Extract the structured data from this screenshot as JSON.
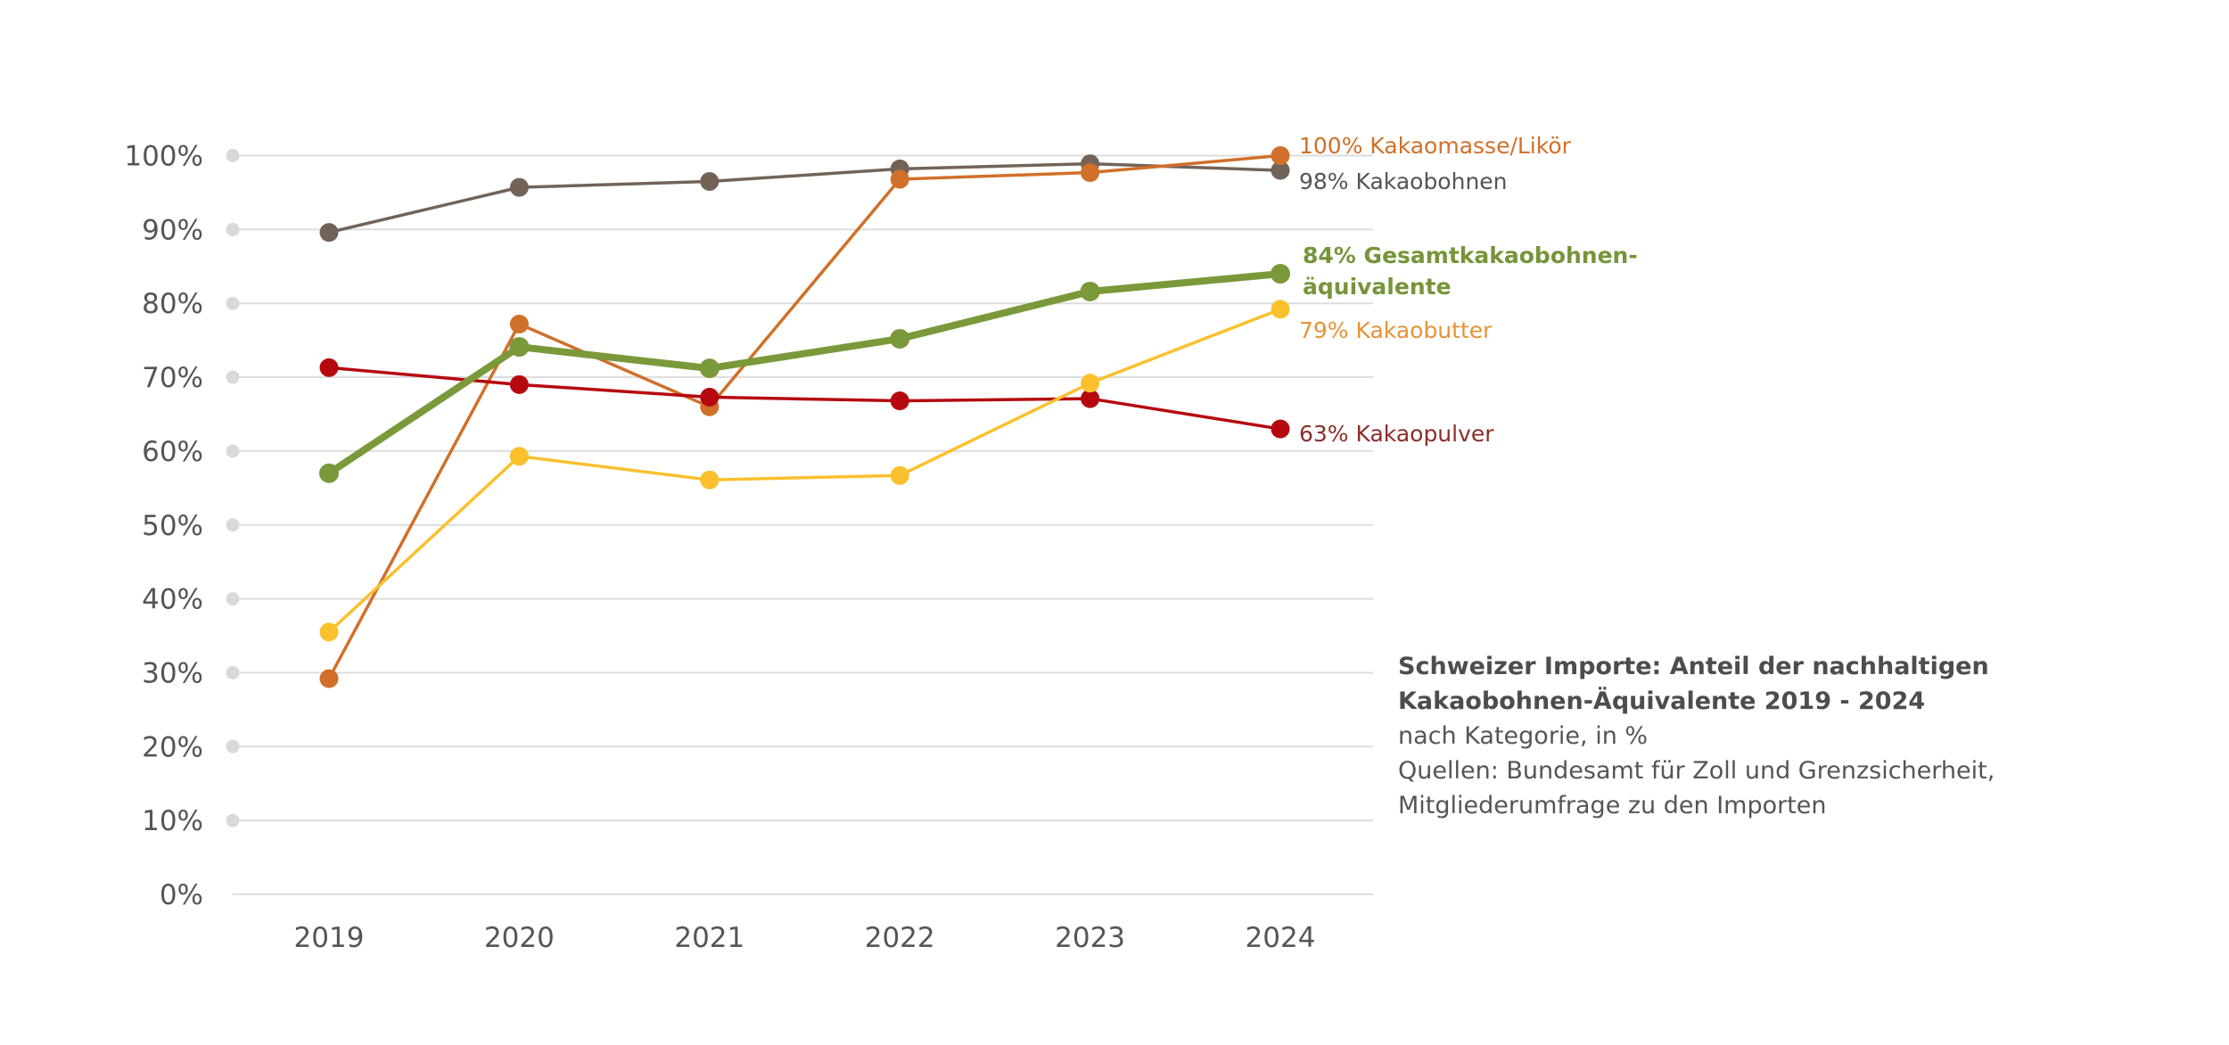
{
  "chart_data": {
    "type": "line",
    "title": "Schweizer Importe: Anteil der nachhaltigen Kakaobohnen-Äquivalente 2019 - 2024",
    "subtitle": "nach Kategorie, in %",
    "source": "Quellen: Bundesamt für Zoll und Grenzsicherheit, Mitgliederumfrage zu den Importen",
    "xlabel": "",
    "ylabel": "",
    "x": [
      "2019",
      "2020",
      "2021",
      "2022",
      "2023",
      "2024"
    ],
    "ylim": [
      0,
      100
    ],
    "yticks": [
      0,
      10,
      20,
      30,
      40,
      50,
      60,
      70,
      80,
      90,
      100
    ],
    "ytick_labels": [
      "0%",
      "10%",
      "20%",
      "30%",
      "40%",
      "50%",
      "60%",
      "70%",
      "80%",
      "90%",
      "100%"
    ],
    "grid": true,
    "legend": "end-of-line labels (right)",
    "series": [
      {
        "name": "Kakaobohnen",
        "end_label": "98% Kakaobohnen",
        "color": "#736357",
        "label_color": "#555555",
        "bold": false,
        "values": [
          89.6,
          95.7,
          96.5,
          98.2,
          98.9,
          98.0
        ]
      },
      {
        "name": "Kakaomasse/Likör",
        "end_label": "100% Kakaomasse/Likör",
        "color": "#d0702a",
        "label_color": "#d0702a",
        "bold": false,
        "values": [
          29.2,
          77.2,
          66.0,
          96.8,
          97.7,
          100.0
        ]
      },
      {
        "name": "Kakaopulver",
        "end_label": "63% Kakaopulver",
        "color": "#b5090f",
        "label_color": "#8a2e2a",
        "bold": false,
        "values": [
          71.3,
          69.0,
          67.3,
          66.8,
          67.1,
          63.0
        ]
      },
      {
        "name": "Kakaobutter",
        "end_label": "79% Kakaobutter",
        "color": "#fbc02d",
        "label_color": "#e69336",
        "bold": false,
        "values": [
          35.5,
          59.3,
          56.1,
          56.7,
          69.2,
          79.2
        ]
      },
      {
        "name": "Gesamtkakaobohnen-äquivalente",
        "end_label": [
          "84% Gesamtkakaobohnen-",
          "äquivalente"
        ],
        "color": "#7a993a",
        "label_color": "#76953a",
        "bold": true,
        "values": [
          57.0,
          74.1,
          71.2,
          75.2,
          81.6,
          84.0
        ]
      }
    ],
    "colors": {
      "grid": "#dddddd",
      "tick_dot": "#d9d9d9",
      "axis_text": "#555555"
    }
  },
  "info": {
    "title_line1": "Schweizer Importe: Anteil der nachhaltigen",
    "title_line2": "Kakaobohnen-Äquivalente 2019 - 2024",
    "subtitle": "nach Kategorie, in %",
    "source_line1": "Quellen: Bundesamt für Zoll und Grenzsicherheit,",
    "source_line2": "Mitgliederumfrage zu den Importen"
  }
}
